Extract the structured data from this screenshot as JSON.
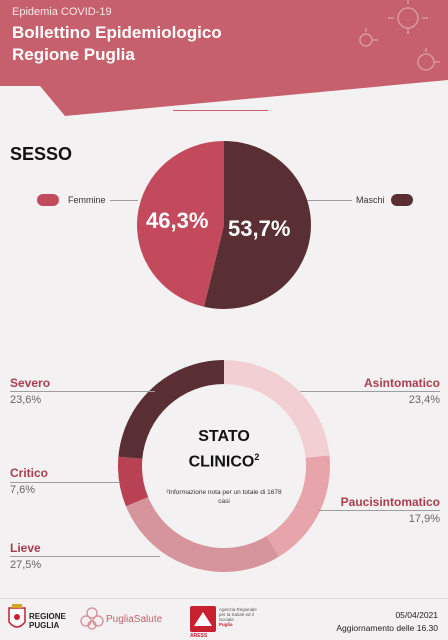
{
  "header": {
    "kicker": "Epidemia COVID-19",
    "title_line1": "Bollettino Epidemiologico",
    "title_line2": "Regione Puglia"
  },
  "sesso": {
    "title": "SESSO",
    "femmine_label": "Femmine",
    "maschi_label": "Maschi",
    "femmine_value": "46,3%",
    "maschi_value": "53,7%"
  },
  "stato_clinico": {
    "center_line1": "STATO",
    "center_line2": "CLINICO",
    "center_sup": "2",
    "note": "²Informazione nota per un totale di 1678  casi",
    "categories": [
      {
        "name": "Asintomatico",
        "value": "23,4%"
      },
      {
        "name": "Paucisintomatico",
        "value": "17,9%"
      },
      {
        "name": "Lieve",
        "value": "27,5%"
      },
      {
        "name": "Critico",
        "value": "7,6%"
      },
      {
        "name": "Severo",
        "value": "23,6%"
      }
    ]
  },
  "footer": {
    "logo1_line1": "REGIONE",
    "logo1_line2": "PUGLIA",
    "logo2": "PugliaSalute",
    "logo3": "ARESS",
    "logo3_caption": "Agenzia Regionale per la Salute ed il Sociale",
    "logo3_caption2": "Puglia",
    "date": "05/04/2021",
    "update": "Aggiornamento delle 16.30"
  },
  "colors": {
    "header": "#c6606d",
    "femmine": "#c24a5c",
    "maschi": "#5a2f33",
    "asintomatico": "#f2cfd2",
    "paucisintomatico": "#e8a4ab",
    "lieve": "#d6959c",
    "critico": "#b84253",
    "severo": "#5a2f33"
  }
}
